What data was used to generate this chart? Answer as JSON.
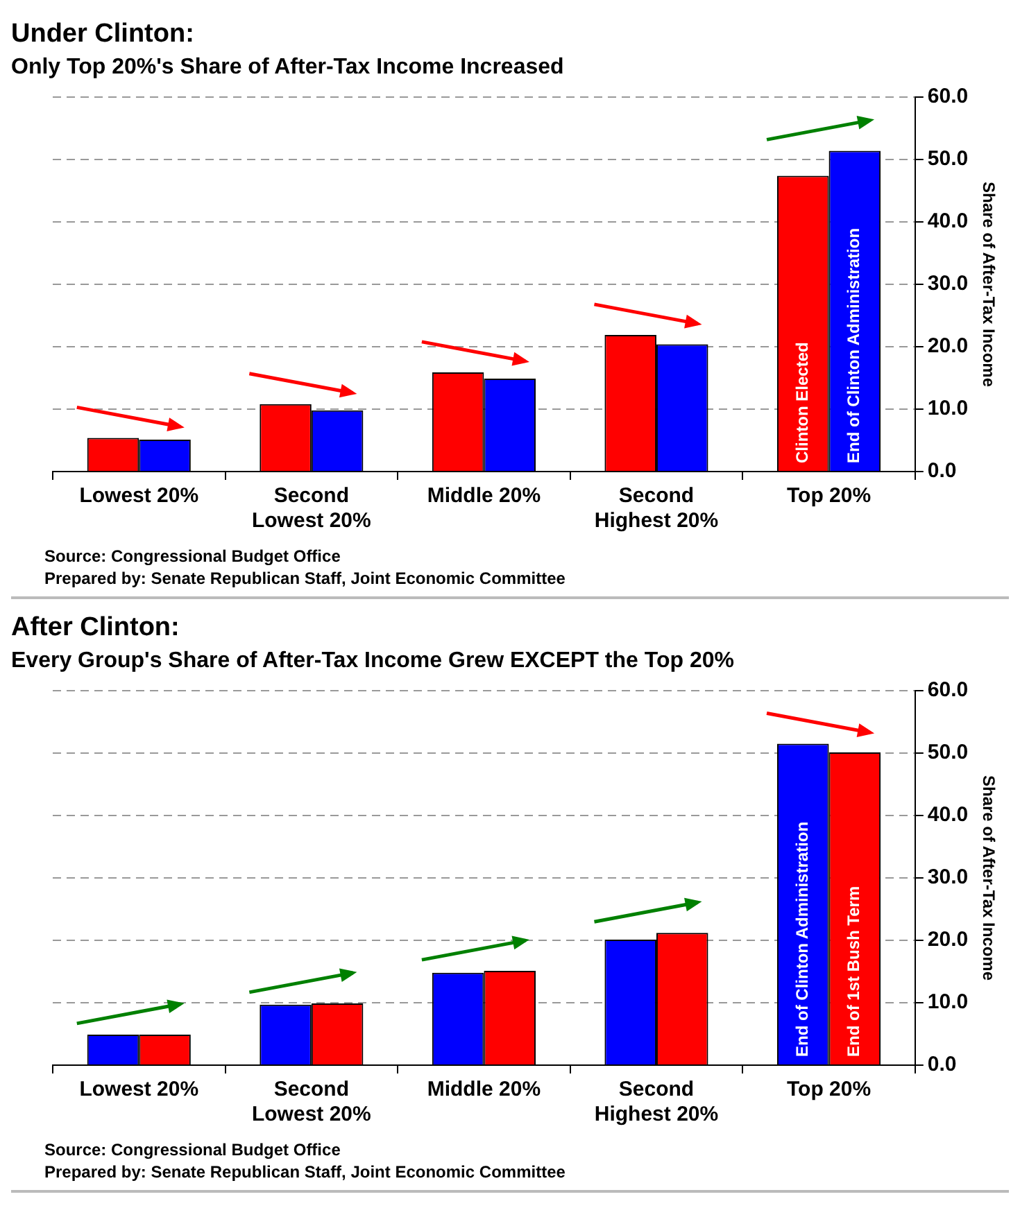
{
  "chart_data": [
    {
      "type": "bar",
      "title": "Under Clinton:",
      "subtitle": "Only Top 20%'s Share of After-Tax Income Increased",
      "categories": [
        "Lowest 20%",
        "Second Lowest 20%",
        "Middle 20%",
        "Second Highest 20%",
        "Top 20%"
      ],
      "series": [
        {
          "name": "Clinton Elected",
          "color": "#ff0000",
          "values": [
            5.4,
            10.8,
            15.9,
            21.9,
            47.4
          ]
        },
        {
          "name": "End of Clinton Administration",
          "color": "#0000ff",
          "values": [
            5.1,
            9.8,
            14.9,
            20.4,
            51.4
          ]
        }
      ],
      "ylabel": "Share of After-Tax Income",
      "ylim": [
        0,
        60
      ],
      "yticks": [
        {
          "value": 0,
          "label": "0.0"
        },
        {
          "value": 10,
          "label": "10.0"
        },
        {
          "value": 20,
          "label": "20.0"
        },
        {
          "value": 30,
          "label": "30.0"
        },
        {
          "value": 40,
          "label": "40.0"
        },
        {
          "value": 50,
          "label": "50.0"
        },
        {
          "value": 60,
          "label": "60.0"
        }
      ],
      "grid": "y",
      "legend": false,
      "annotations": [
        "Source:  Congressional Budget Office",
        "Prepared by:  Senate Republican Staff, Joint Economic Committee"
      ]
    },
    {
      "type": "bar",
      "title": "After Clinton:",
      "subtitle": "Every Group's Share of After-Tax Income Grew EXCEPT the Top 20%",
      "categories": [
        "Lowest 20%",
        "Second Lowest 20%",
        "Middle 20%",
        "Second Highest 20%",
        "Top 20%"
      ],
      "series": [
        {
          "name": "End of Clinton Administration",
          "color": "#0000ff",
          "values": [
            4.9,
            9.7,
            14.8,
            20.1,
            51.5
          ]
        },
        {
          "name": "End of 1st Bush Term",
          "color": "#ff0000",
          "values": [
            4.9,
            9.9,
            15.1,
            21.2,
            50.1
          ]
        }
      ],
      "ylabel": "Share of After-Tax Income",
      "ylim": [
        0,
        60
      ],
      "yticks": [
        {
          "value": 0,
          "label": "0.0"
        },
        {
          "value": 10,
          "label": "10.0"
        },
        {
          "value": 20,
          "label": "20.0"
        },
        {
          "value": 30,
          "label": "30.0"
        },
        {
          "value": 40,
          "label": "40.0"
        },
        {
          "value": 50,
          "label": "50.0"
        },
        {
          "value": 60,
          "label": "60.0"
        }
      ],
      "grid": "y",
      "legend": false,
      "annotations": [
        "Source:  Congressional Budget Office",
        "Prepared by:  Senate Republican Staff, Joint Economic Committee"
      ]
    }
  ]
}
